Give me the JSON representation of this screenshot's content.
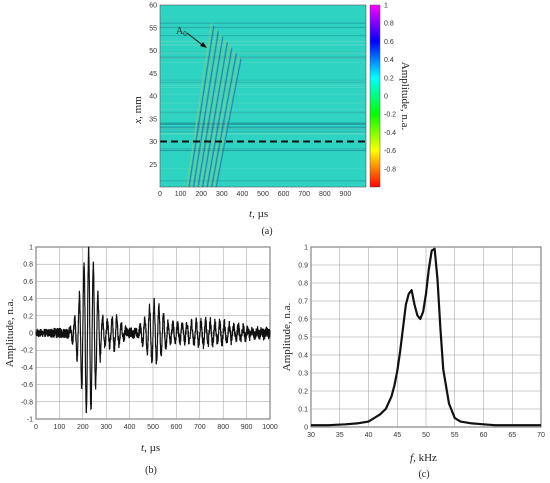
{
  "panels": [
    {
      "id": "a",
      "caption": "(a)",
      "type": "heatmap",
      "xlabel_main": "t",
      "xlabel_unit": ", µs",
      "ylabel_main": "x",
      "ylabel_unit": ", mm",
      "xlim": [
        0,
        1000
      ],
      "ylim": [
        20,
        60
      ],
      "xticks": [
        "0",
        "100",
        "200",
        "300",
        "400",
        "500",
        "600",
        "700",
        "800",
        "900"
      ],
      "yticks": [
        "25",
        "30",
        "35",
        "40",
        "45",
        "50",
        "55",
        "60"
      ],
      "annotation": "A",
      "annotation_sub": "0",
      "dashed_line_x_mm": 30,
      "colorbar_label": "Amplitude, n.a.",
      "colorbar_ticks": [
        "1",
        "0.8",
        "0.6",
        "0.4",
        "0.2",
        "0",
        "-0.2",
        "-0.4",
        "-0.6",
        "-0.8"
      ],
      "colorbar_range": [
        -1,
        1
      ],
      "colormap": [
        "#ff0000",
        "#ffff00",
        "#00ff00",
        "#00ffff",
        "#0000ff",
        "#ff00ff"
      ],
      "background_color": "#2fd3c2"
    },
    {
      "id": "b",
      "caption": "(b)",
      "type": "line",
      "xlabel_main": "t",
      "xlabel_unit": ", µs",
      "ylabel": "Amplitude, n.a.",
      "xlim": [
        0,
        1000
      ],
      "ylim": [
        -1,
        1
      ],
      "xticks": [
        "0",
        "100",
        "200",
        "300",
        "400",
        "500",
        "600",
        "700",
        "800",
        "900",
        "1000"
      ],
      "yticks": [
        "1",
        "0.8",
        "0.6",
        "0.4",
        "0.2",
        "0",
        "-0.2",
        "-0.4",
        "-0.6",
        "-0.8",
        "-1"
      ],
      "grid": true,
      "signal": {
        "carrier_khz": 50,
        "packets": [
          {
            "center_us": 225,
            "width_us": 45,
            "amplitude": 0.95
          },
          {
            "center_us": 505,
            "width_us": 45,
            "amplitude": 0.32
          },
          {
            "center_us": 335,
            "width_us": 35,
            "amplitude": 0.18
          },
          {
            "center_us": 720,
            "width_us": 180,
            "amplitude": 0.13
          }
        ],
        "noise_level": 0.06
      }
    },
    {
      "id": "c",
      "caption": "(c)",
      "type": "line",
      "xlabel_main": "f",
      "xlabel_unit": ", kHz",
      "ylabel": "Amplitude, n.a.",
      "xlim": [
        30,
        70
      ],
      "ylim": [
        0,
        1
      ],
      "xticks": [
        "30",
        "35",
        "40",
        "45",
        "50",
        "55",
        "60",
        "65",
        "70"
      ],
      "yticks": [
        "1",
        "0.9",
        "0.8",
        "0.7",
        "0.6",
        "0.5",
        "0.4",
        "0.3",
        "0.2",
        "0.1",
        "0"
      ],
      "grid": true,
      "spectrum": {
        "x": [
          30,
          33,
          36,
          38,
          40,
          41,
          42,
          43,
          44,
          44.5,
          45,
          45.5,
          46,
          46.5,
          47,
          47.5,
          48,
          48.5,
          49,
          49.5,
          50,
          50.5,
          51,
          51.5,
          52,
          52.5,
          53,
          54,
          55,
          56,
          58,
          60,
          62,
          65,
          68,
          70
        ],
        "y": [
          0.01,
          0.01,
          0.015,
          0.02,
          0.03,
          0.05,
          0.07,
          0.1,
          0.17,
          0.23,
          0.31,
          0.42,
          0.55,
          0.68,
          0.74,
          0.76,
          0.68,
          0.62,
          0.6,
          0.64,
          0.74,
          0.88,
          0.98,
          0.99,
          0.82,
          0.55,
          0.32,
          0.13,
          0.05,
          0.03,
          0.02,
          0.015,
          0.01,
          0.01,
          0.01,
          0.01
        ]
      }
    }
  ]
}
